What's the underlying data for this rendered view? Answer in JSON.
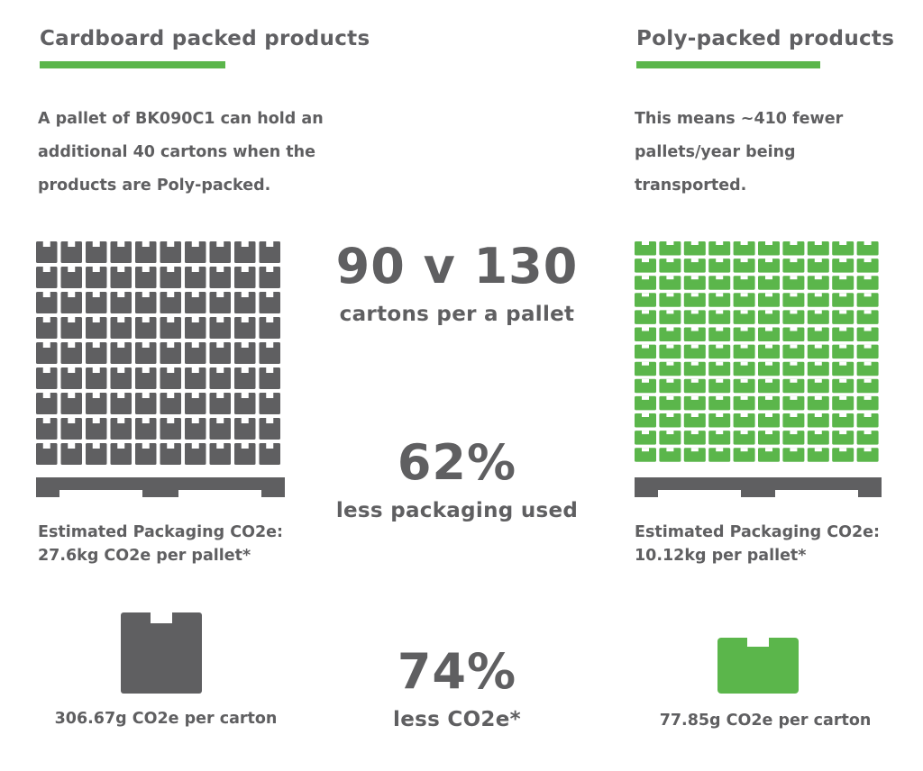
{
  "colors": {
    "accent": "#5bb64b",
    "grey": "#5f5f61"
  },
  "left": {
    "heading": "Cardboard packed products",
    "description_lines": [
      "A pallet of BK090C1 can hold an",
      "additional 40 cartons when the",
      "products are Poly-packed."
    ],
    "co2_pallet_lines": [
      "Estimated Packaging CO2e:",
      "27.6kg CO2e per pallet*"
    ],
    "carton_caption": "306.67g CO2e per carton",
    "pallet_icon": "stacked-cardboard-cartons-pallet",
    "carton_icon": "cardboard-box-icon"
  },
  "right": {
    "heading": "Poly-packed products",
    "description_lines": [
      "This means ~410 fewer",
      "pallets/year being",
      "transported."
    ],
    "co2_pallet_lines": [
      "Estimated Packaging CO2e:",
      "10.12kg per pallet*"
    ],
    "carton_caption": "77.85g CO2e per carton",
    "pallet_icon": "stacked-poly-packs-pallet",
    "carton_icon": "poly-pack-icon"
  },
  "center": {
    "stat1_value": "90 v 130",
    "stat1_label": "cartons per a pallet",
    "stat2_value": "62%",
    "stat2_label": "less packaging used",
    "stat3_value": "74%",
    "stat3_label": "less CO2e*"
  }
}
